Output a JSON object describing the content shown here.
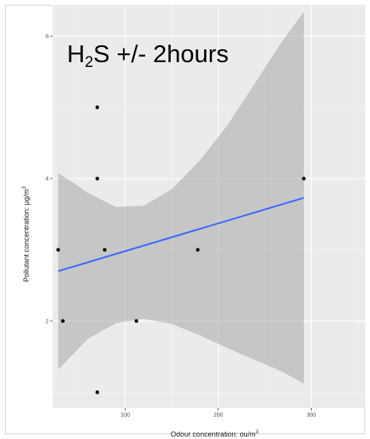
{
  "chart_data": {
    "type": "scatter",
    "title_prefix": "H",
    "title_subscript": "2",
    "title_suffix": "S +/- 2hours",
    "xlabel": "Odour concentration: ou/m",
    "xlabel_superscript": "3",
    "ylabel": "Pollutant concentration: µg/m",
    "ylabel_superscript": "3",
    "xlim": [
      22,
      358
    ],
    "ylim": [
      0.78,
      6.44
    ],
    "x_ticks": [
      100,
      200,
      300
    ],
    "x_tick_labels": [
      "100",
      "200",
      "300"
    ],
    "y_ticks": [
      2,
      4,
      6
    ],
    "y_tick_labels": [
      "2",
      "4",
      "6"
    ],
    "grid": true,
    "points": [
      {
        "x": 28,
        "y": 3
      },
      {
        "x": 33,
        "y": 2
      },
      {
        "x": 70,
        "y": 5
      },
      {
        "x": 70,
        "y": 4
      },
      {
        "x": 70,
        "y": 1
      },
      {
        "x": 78,
        "y": 3
      },
      {
        "x": 112,
        "y": 2
      },
      {
        "x": 178,
        "y": 3
      },
      {
        "x": 292,
        "y": 4
      }
    ],
    "fit_line": {
      "x": [
        28,
        292
      ],
      "y": [
        2.7,
        3.73
      ]
    },
    "confidence_band": {
      "x": [
        28,
        60,
        90,
        120,
        150,
        180,
        210,
        240,
        270,
        292
      ],
      "upper": [
        4.08,
        3.8,
        3.6,
        3.62,
        3.85,
        4.25,
        4.75,
        5.35,
        5.95,
        6.34
      ],
      "lower": [
        1.32,
        1.75,
        1.97,
        2.03,
        1.96,
        1.8,
        1.62,
        1.45,
        1.28,
        1.12
      ]
    },
    "colors": {
      "panel": "#ebebeb",
      "grid_major": "#ffffff",
      "grid_minor": "#f5f5f5",
      "band": "#999999",
      "line": "#3366ff",
      "point": "#000000"
    }
  }
}
